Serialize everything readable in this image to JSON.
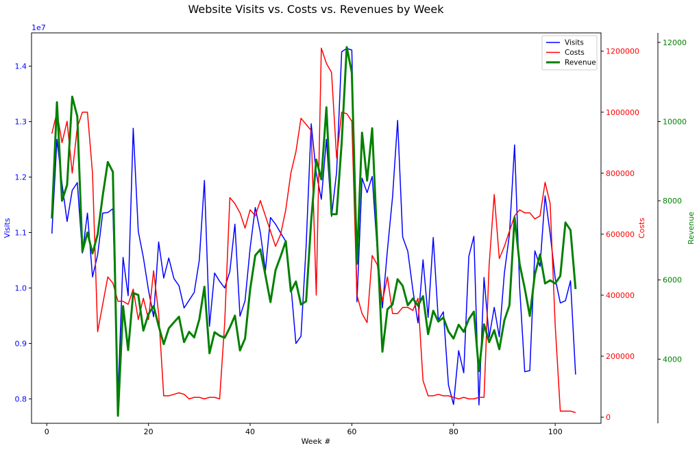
{
  "chart_data": {
    "type": "line",
    "title": "Website Visits vs. Costs vs. Revenues by Week",
    "xlabel": "Week #",
    "xlim": [
      -3,
      109
    ],
    "xticks": [
      0,
      20,
      40,
      60,
      80,
      100
    ],
    "axes": {
      "visits": {
        "label": "Visits",
        "color": "#0000ff",
        "lim": [
          7560000,
          14600000
        ],
        "ticks": [
          8000000,
          9000000,
          10000000,
          11000000,
          12000000,
          13000000,
          14000000
        ],
        "tick_labels": [
          "0.8",
          "0.9",
          "1.0",
          "1.1",
          "1.2",
          "1.3",
          "1.4"
        ],
        "offset_text": "1e7"
      },
      "costs": {
        "label": "Costs",
        "color": "#ff0000",
        "lim": [
          -20000,
          1260000
        ],
        "ticks": [
          0,
          200000,
          400000,
          600000,
          800000,
          1000000,
          1200000
        ],
        "tick_labels": [
          "0",
          "200000",
          "400000",
          "600000",
          "800000",
          "1000000",
          "1200000"
        ]
      },
      "revenue": {
        "label": "Revenue",
        "color": "#008000",
        "lim": [
          2380,
          12240
        ],
        "ticks": [
          4000,
          6000,
          8000,
          10000,
          12000
        ],
        "tick_labels": [
          "4000",
          "6000",
          "8000",
          "10000",
          "12000"
        ]
      }
    },
    "legend": {
      "position": "top-right",
      "entries": [
        "Visits",
        "Costs",
        "Revenue"
      ]
    },
    "series": [
      {
        "name": "Visits",
        "axis": "visits",
        "color": "#0000ff",
        "width": 1.5,
        "values": [
          10980000,
          12680000,
          11880000,
          11200000,
          11760000,
          11900000,
          10630000,
          11350000,
          10200000,
          10600000,
          11350000,
          11360000,
          11430000,
          8020000,
          10550000,
          9860000,
          12880000,
          11020000,
          10550000,
          9960000,
          9480000,
          10830000,
          10180000,
          10540000,
          10170000,
          10040000,
          9640000,
          9780000,
          9920000,
          10500000,
          11940000,
          9310000,
          10270000,
          10120000,
          10000000,
          10300000,
          11150000,
          9490000,
          9770000,
          10720000,
          11450000,
          11000000,
          10310000,
          11270000,
          11150000,
          10990000,
          10840000,
          10060000,
          9000000,
          9130000,
          10750000,
          12960000,
          12070000,
          11600000,
          12680000,
          11290000,
          12090000,
          14260000,
          14320000,
          14290000,
          9750000,
          11980000,
          11720000,
          12010000,
          10680000,
          9640000,
          10690000,
          11640000,
          13020000,
          10920000,
          10660000,
          9960000,
          9370000,
          10510000,
          9470000,
          10910000,
          9420000,
          9570000,
          8250000,
          7900000,
          8870000,
          8470000,
          10570000,
          10930000,
          7890000,
          10190000,
          9110000,
          9650000,
          9120000,
          10270000,
          10970000,
          12580000,
          10010000,
          8490000,
          8510000,
          10670000,
          10390000,
          11660000,
          10980000,
          10170000,
          9730000,
          9770000,
          10130000,
          8440000
        ]
      },
      {
        "name": "Costs",
        "axis": "costs",
        "color": "#ff0000",
        "width": 1.5,
        "values": [
          930000,
          1000000,
          900000,
          970000,
          800000,
          950000,
          1000000,
          1000000,
          800000,
          280000,
          370000,
          460000,
          440000,
          380000,
          380000,
          370000,
          420000,
          320000,
          390000,
          320000,
          480000,
          340000,
          70000,
          70000,
          75000,
          80000,
          75000,
          60000,
          65000,
          65000,
          60000,
          65000,
          65000,
          60000,
          310000,
          720000,
          700000,
          670000,
          620000,
          680000,
          660000,
          710000,
          660000,
          610000,
          560000,
          600000,
          680000,
          800000,
          870000,
          980000,
          960000,
          940000,
          400000,
          1210000,
          1160000,
          1130000,
          850000,
          1000000,
          995000,
          970000,
          400000,
          340000,
          310000,
          530000,
          500000,
          380000,
          460000,
          340000,
          340000,
          360000,
          360000,
          350000,
          390000,
          120000,
          70000,
          70000,
          75000,
          70000,
          70000,
          65000,
          60000,
          65000,
          60000,
          60000,
          65000,
          65000,
          500000,
          730000,
          520000,
          560000,
          610000,
          660000,
          680000,
          670000,
          670000,
          650000,
          660000,
          770000,
          700000,
          300000,
          20000,
          20000,
          20000,
          15000
        ]
      },
      {
        "name": "Revenue",
        "axis": "revenue",
        "color": "#008000",
        "width": 3,
        "values": [
          7550,
          10490,
          8000,
          8400,
          10630,
          10130,
          6720,
          7200,
          6670,
          7150,
          8130,
          8980,
          8730,
          2570,
          5340,
          4230,
          5670,
          5620,
          4720,
          5140,
          5340,
          4840,
          4380,
          4780,
          4930,
          5070,
          4430,
          4690,
          4550,
          5000,
          5830,
          4150,
          4680,
          4590,
          4540,
          4800,
          5100,
          4220,
          4520,
          5760,
          6620,
          6770,
          6120,
          5440,
          6250,
          6600,
          6980,
          5710,
          5960,
          5380,
          5460,
          7500,
          9040,
          8540,
          10360,
          7660,
          7660,
          9470,
          11880,
          11240,
          6410,
          9720,
          8510,
          9830,
          6930,
          4190,
          5260,
          5380,
          6020,
          5850,
          5360,
          5530,
          5350,
          5590,
          4630,
          5220,
          4950,
          5050,
          4700,
          4520,
          4870,
          4690,
          5010,
          5200,
          3700,
          4880,
          4430,
          4730,
          4250,
          4980,
          5360,
          7580,
          6400,
          5790,
          5090,
          6140,
          6640,
          5910,
          5990,
          5910,
          6100,
          7450,
          7260,
          5770
        ]
      }
    ]
  }
}
